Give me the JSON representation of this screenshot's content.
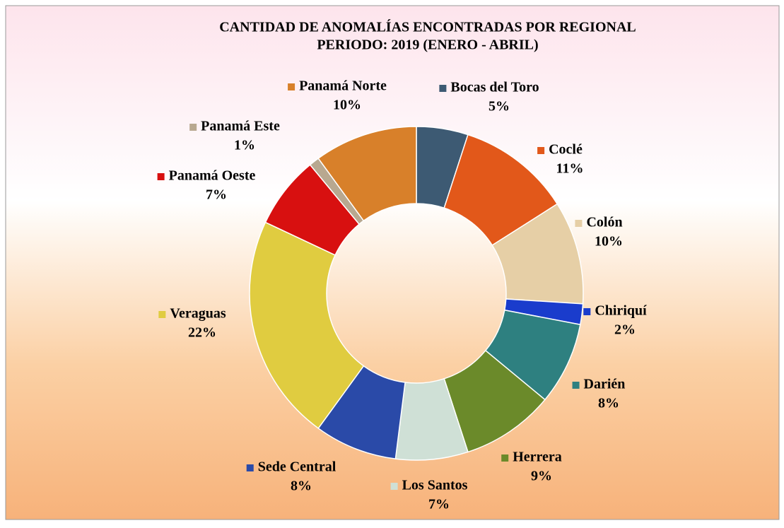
{
  "chart_data": {
    "type": "donut",
    "title": "CANTIDAD DE ANOMALÍAS ENCONTRADAS POR REGIONAL",
    "subtitle": "PERIODO: 2019 (ENERO - ABRIL)",
    "categories": [
      "Bocas del Toro",
      "Coclé",
      "Colón",
      "Chiriquí",
      "Darién",
      "Herrera",
      "Los Santos",
      "Sede Central",
      "Veraguas",
      "Panamá Oeste",
      "Panamá Este",
      "Panamá Norte"
    ],
    "values": [
      5,
      11,
      10,
      2,
      8,
      9,
      7,
      8,
      22,
      7,
      1,
      10
    ],
    "value_labels": [
      "5%",
      "11%",
      "10%",
      "2%",
      "8%",
      "9%",
      "7%",
      "8%",
      "22%",
      "7%",
      "1%",
      "10%"
    ],
    "colors": [
      "#3d5a73",
      "#e2581a",
      "#e6cfa6",
      "#1a3ccc",
      "#2e8080",
      "#6b8a2a",
      "#cfe0d6",
      "#2a4aa8",
      "#e0cc40",
      "#d81010",
      "#b8a890",
      "#d8802a"
    ]
  }
}
